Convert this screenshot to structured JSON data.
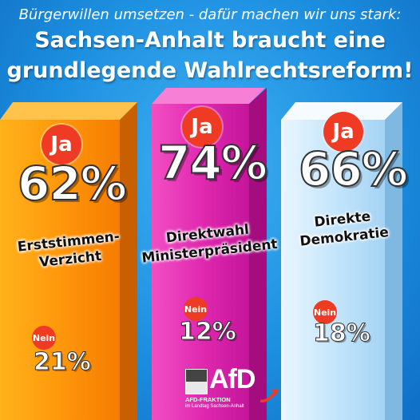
{
  "header": {
    "subtitle": "Bürgerwillen umsetzen - dafür machen wir uns stark:",
    "title_line1": "Sachsen-Anhalt braucht eine",
    "title_line2": "grundlegende Wahlrechtsreform!"
  },
  "chart_data": {
    "type": "bar",
    "categories": [
      "Erststimmen-Verzicht",
      "Direktwahl Ministerpräsident",
      "Direkte Demokratie"
    ],
    "series": [
      {
        "name": "Ja",
        "values": [
          62,
          74,
          66
        ]
      },
      {
        "name": "Nein",
        "values": [
          21,
          12,
          18
        ]
      }
    ],
    "ylim": [
      0,
      100
    ]
  },
  "bars": [
    {
      "yes_label": "Ja",
      "yes_value": "62%",
      "label_line1": "Erststimmen-",
      "label_line2": "Verzicht",
      "no_label": "Nein",
      "no_value": "21%",
      "color": "#ff9a0d"
    },
    {
      "yes_label": "Ja",
      "yes_value": "74%",
      "label_line1": "Direktwahl",
      "label_line2": "Ministerpräsident",
      "no_label": "Nein",
      "no_value": "12%",
      "color": "#e02ab0"
    },
    {
      "yes_label": "Ja",
      "yes_value": "66%",
      "label_line1": "Direkte",
      "label_line2": "Demokratie",
      "no_label": "Nein",
      "no_value": "18%",
      "color": "#c6e6fb"
    }
  ],
  "badge_color": "#ef3b24",
  "logo": {
    "name": "AfD",
    "line1": "AFD-FRAKTION",
    "line2": "im Landtag Sachsen-Anhalt"
  }
}
